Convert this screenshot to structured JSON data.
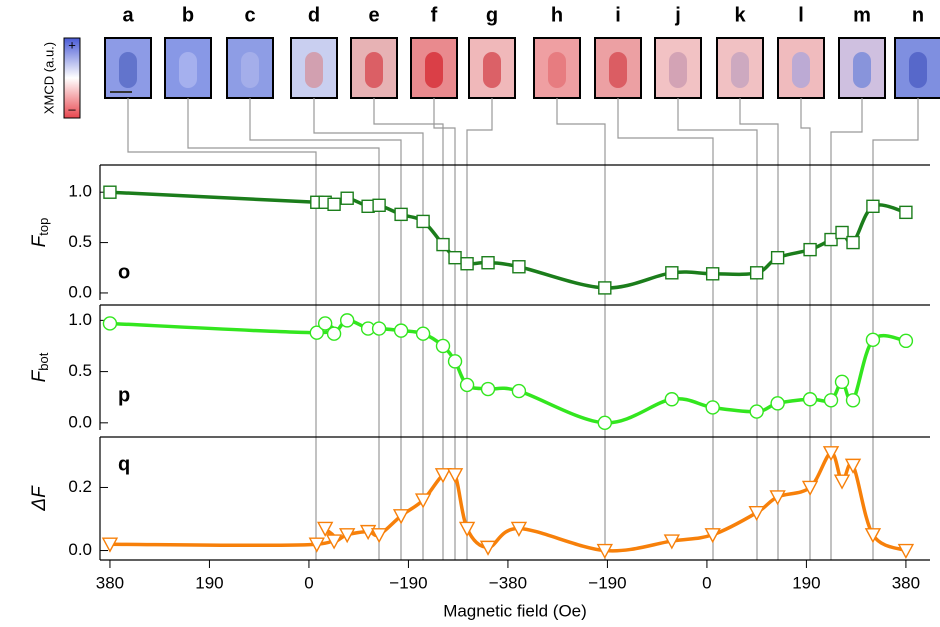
{
  "images": {
    "labels": [
      "a",
      "b",
      "c",
      "d",
      "e",
      "f",
      "g",
      "h",
      "i",
      "j",
      "k",
      "l",
      "m",
      "n"
    ]
  },
  "colorbar": {
    "label": "XMCD (a.u.)",
    "max_label": "+",
    "min_label": "–"
  },
  "chart_data": [
    {
      "type": "line",
      "panel_label": "o",
      "ylabel": "F",
      "ylabel_sub": "top",
      "x": [
        0,
        395,
        411,
        428,
        453,
        493,
        514,
        556,
        598,
        636,
        659,
        682,
        722,
        781,
        945,
        1073,
        1151,
        1235,
        1275,
        1337,
        1377,
        1398,
        1419,
        1457,
        1520
      ],
      "series": [
        {
          "color": "#1b7d1b",
          "marker": "square",
          "values": [
            1.0,
            0.9,
            0.9,
            0.88,
            0.94,
            0.86,
            0.87,
            0.78,
            0.71,
            0.48,
            0.35,
            0.29,
            0.3,
            0.26,
            0.05,
            0.2,
            0.19,
            0.2,
            0.35,
            0.43,
            0.53,
            0.6,
            0.5,
            0.86,
            0.8
          ]
        }
      ],
      "ylim": [
        -0.07,
        1.27
      ],
      "yticks": [
        {
          "value": 0,
          "label": "0.0"
        },
        0.5,
        {
          "value": 1,
          "label": "1.0"
        }
      ]
    },
    {
      "type": "line",
      "panel_label": "p",
      "ylabel": "F",
      "ylabel_sub": "bot",
      "x": [
        0,
        395,
        411,
        428,
        453,
        493,
        514,
        556,
        598,
        636,
        659,
        682,
        722,
        781,
        945,
        1073,
        1151,
        1235,
        1275,
        1337,
        1377,
        1398,
        1419,
        1457,
        1520
      ],
      "series": [
        {
          "color": "#33e61f",
          "marker": "circle",
          "values": [
            0.97,
            0.88,
            0.97,
            0.87,
            1.0,
            0.92,
            0.92,
            0.9,
            0.87,
            0.75,
            0.6,
            0.37,
            0.33,
            0.31,
            0.0,
            0.23,
            0.15,
            0.11,
            0.19,
            0.23,
            0.22,
            0.4,
            0.22,
            0.81,
            0.8
          ]
        }
      ],
      "ylim": [
        -0.07,
        1.15
      ],
      "yticks": [
        {
          "value": 0,
          "label": "0.0"
        },
        0.5,
        {
          "value": 1,
          "label": "1.0"
        }
      ]
    },
    {
      "type": "line",
      "panel_label": "q",
      "ylabel": "ΔF",
      "x": [
        0,
        395,
        411,
        428,
        453,
        493,
        514,
        556,
        598,
        636,
        659,
        682,
        722,
        781,
        945,
        1073,
        1151,
        1235,
        1275,
        1337,
        1377,
        1398,
        1419,
        1457,
        1520
      ],
      "series": [
        {
          "color": "#f7800a",
          "marker": "triangle-down",
          "values": [
            0.02,
            0.02,
            0.07,
            0.03,
            0.05,
            0.06,
            0.05,
            0.11,
            0.16,
            0.24,
            0.24,
            0.07,
            0.01,
            0.07,
            0.0,
            0.03,
            0.05,
            0.12,
            0.17,
            0.2,
            0.31,
            0.22,
            0.27,
            0.05,
            0.0
          ]
        }
      ],
      "ylim": [
        -0.03,
        0.36
      ],
      "yticks": [
        {
          "value": 0,
          "label": "0.0"
        },
        0.2
      ],
      "xlabel": "Magnetic field (Oe)",
      "xlim": [
        -19,
        1566
      ],
      "xticks": [
        {
          "value": 0,
          "label": "380"
        },
        {
          "value": 190,
          "label": "190"
        },
        {
          "value": 380,
          "label": "0"
        },
        {
          "value": 570,
          "label": "−190"
        },
        {
          "value": 760,
          "label": "−380"
        },
        {
          "value": 950,
          "label": "−190"
        },
        {
          "value": 1140,
          "label": "0"
        },
        {
          "value": 1330,
          "label": "190"
        },
        {
          "value": 1520,
          "label": "380"
        }
      ]
    }
  ]
}
